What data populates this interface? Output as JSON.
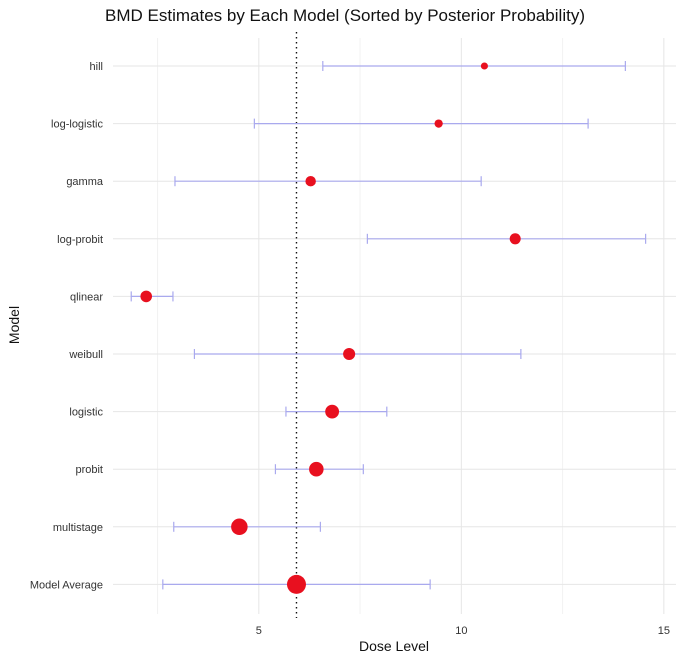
{
  "chart_data": {
    "type": "scatter",
    "title": "BMD Estimates by Each Model (Sorted by Posterior Probability)",
    "xlabel": "Dose Level",
    "ylabel": "Model",
    "xlim": [
      1.4,
      15.3
    ],
    "x_ticks": [
      5,
      10,
      15
    ],
    "x_tick_labels": [
      "5",
      "10",
      "15"
    ],
    "grid": true,
    "reference_line_x": 5.93,
    "colors": {
      "point": "#e8101f",
      "interval": "#a9a9ee",
      "reference": "#111111"
    },
    "models": [
      {
        "name": "hill",
        "bmd": 10.57,
        "lower": 6.58,
        "upper": 14.05,
        "posterior_weight": 0.01
      },
      {
        "name": "log-logistic",
        "bmd": 9.44,
        "lower": 4.89,
        "upper": 13.13,
        "posterior_weight": 0.02
      },
      {
        "name": "gamma",
        "bmd": 6.28,
        "lower": 2.93,
        "upper": 10.49,
        "posterior_weight": 0.05
      },
      {
        "name": "log-probit",
        "bmd": 11.33,
        "lower": 7.68,
        "upper": 14.55,
        "posterior_weight": 0.06
      },
      {
        "name": "qlinear",
        "bmd": 2.22,
        "lower": 1.85,
        "upper": 2.88,
        "posterior_weight": 0.07
      },
      {
        "name": "weibull",
        "bmd": 7.23,
        "lower": 3.41,
        "upper": 11.47,
        "posterior_weight": 0.08
      },
      {
        "name": "logistic",
        "bmd": 6.81,
        "lower": 5.67,
        "upper": 8.16,
        "posterior_weight": 0.12
      },
      {
        "name": "probit",
        "bmd": 6.42,
        "lower": 5.41,
        "upper": 7.58,
        "posterior_weight": 0.14
      },
      {
        "name": "multistage",
        "bmd": 4.52,
        "lower": 2.9,
        "upper": 6.52,
        "posterior_weight": 0.2
      },
      {
        "name": "Model Average",
        "bmd": 5.93,
        "lower": 2.63,
        "upper": 9.23,
        "posterior_weight": 0.29
      }
    ]
  }
}
